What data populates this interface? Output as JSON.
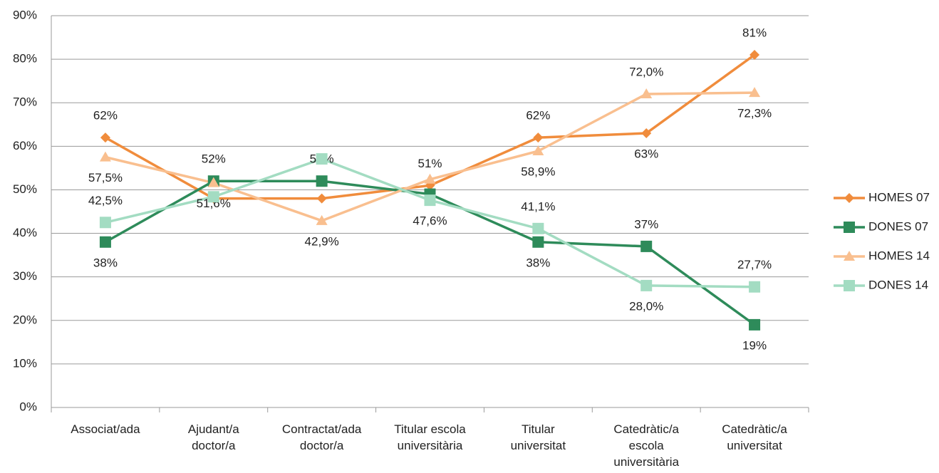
{
  "chart_data": {
    "type": "line",
    "categories": [
      "Associat/ada",
      "Ajudant/a doctor/a",
      "Contractat/ada doctor/a",
      "Titular escola universitària",
      "Titular universitat",
      "Catedràtic/a escola universitària",
      "Catedràtic/a universitat"
    ],
    "series": [
      {
        "name": "HOMES 07",
        "color": "#f08c3c",
        "marker": "diamond",
        "values": [
          62,
          48,
          48,
          51,
          62,
          63,
          81
        ],
        "value_labels": [
          "62%",
          null,
          null,
          "51%",
          "62%",
          "63%",
          "81%"
        ]
      },
      {
        "name": "DONES 07",
        "color": "#2e8b5a",
        "marker": "square",
        "values": [
          38,
          52,
          52,
          49,
          38,
          37,
          19
        ],
        "value_labels": [
          "38%",
          "52%",
          "52%",
          null,
          "38%",
          "37%",
          "19%"
        ]
      },
      {
        "name": "HOMES 14",
        "color": "#f9bf8f",
        "marker": "triangle",
        "values": [
          57.5,
          51.6,
          42.9,
          52.4,
          58.9,
          72.0,
          72.3
        ],
        "value_labels": [
          "57,5%",
          "51,6%",
          "42,9%",
          null,
          "58,9%",
          "72,0%",
          "72,3%"
        ]
      },
      {
        "name": "DONES 14",
        "color": "#a3dcc2",
        "marker": "square",
        "values": [
          42.5,
          48.4,
          57.1,
          47.6,
          41.1,
          28.0,
          27.7
        ],
        "value_labels": [
          "42,5%",
          null,
          null,
          "47,6%",
          "41,1%",
          "28,0%",
          "27,7%"
        ]
      }
    ],
    "ylim": [
      0,
      90
    ],
    "yticks": [
      {
        "value": 0,
        "label": "0%"
      },
      {
        "value": 10,
        "label": "10%"
      },
      {
        "value": 20,
        "label": "20%"
      },
      {
        "value": 30,
        "label": "30%"
      },
      {
        "value": 40,
        "label": "40%"
      },
      {
        "value": 50,
        "label": "50%"
      },
      {
        "value": 60,
        "label": "60%"
      },
      {
        "value": 70,
        "label": "70%"
      },
      {
        "value": 80,
        "label": "80%"
      },
      {
        "value": 90,
        "label": "90%"
      }
    ],
    "grid": true,
    "legend": "right"
  }
}
